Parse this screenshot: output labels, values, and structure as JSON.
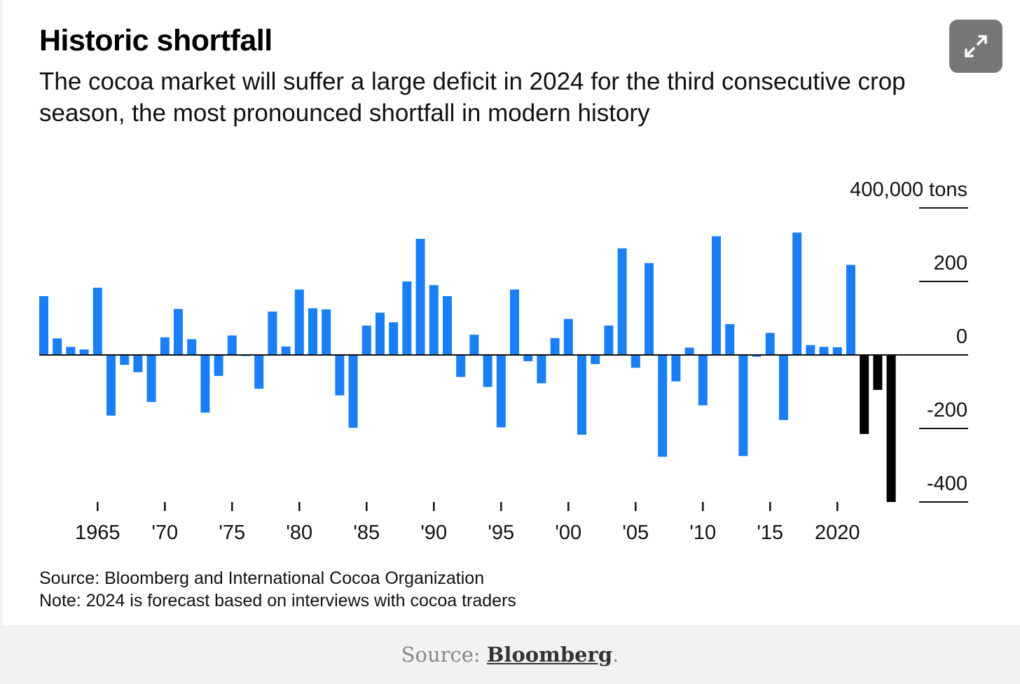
{
  "title": "Historic shortfall",
  "subtitle": "The cocoa market will suffer a large deficit in 2024 for the third consecutive crop season, the most pronounced shortfall in modern history",
  "expand_icon": "expand-icon",
  "notes": {
    "source": "Source: Bloomberg and International Cocoa Organization",
    "note": "Note: 2024 is forecast based on interviews with cocoa traders"
  },
  "caption": {
    "prefix": "Source: ",
    "link": "Bloomberg",
    "suffix": "."
  },
  "colors": {
    "actual": "#1a7ff5",
    "forecast": "#000000",
    "expand_bg": "#777777"
  },
  "chart_data": {
    "type": "bar",
    "title": "Historic shortfall",
    "unit_label": "400,000 tons",
    "ylim": [
      -400,
      400
    ],
    "yticks": [
      {
        "value": 400,
        "label": "400,000 tons"
      },
      {
        "value": 200,
        "label": "200"
      },
      {
        "value": 0,
        "label": "0"
      },
      {
        "value": -200,
        "label": "-200"
      },
      {
        "value": -400,
        "label": "-400"
      }
    ],
    "xticks": [
      {
        "year": 1965,
        "label": "1965"
      },
      {
        "year": 1970,
        "label": "'70"
      },
      {
        "year": 1975,
        "label": "'75"
      },
      {
        "year": 1980,
        "label": "'80"
      },
      {
        "year": 1985,
        "label": "'85"
      },
      {
        "year": 1990,
        "label": "'90"
      },
      {
        "year": 1995,
        "label": "'95"
      },
      {
        "year": 2000,
        "label": "'00"
      },
      {
        "year": 2005,
        "label": "'05"
      },
      {
        "year": 2010,
        "label": "'10"
      },
      {
        "year": 2015,
        "label": "'15"
      },
      {
        "year": 2020,
        "label": "2020"
      }
    ],
    "grid": false,
    "series": [
      {
        "x": [
          1961,
          1962,
          1963,
          1964,
          1965,
          1966,
          1967,
          1968,
          1969,
          1970,
          1971,
          1972,
          1973,
          1974,
          1975,
          1976,
          1977,
          1978,
          1979,
          1980,
          1981,
          1982,
          1983,
          1984,
          1985,
          1986,
          1987,
          1988,
          1989,
          1990,
          1991,
          1992,
          1993,
          1994,
          1995,
          1996,
          1997,
          1998,
          1999,
          2000,
          2001,
          2002,
          2003,
          2004,
          2005,
          2006,
          2007,
          2008,
          2009,
          2010,
          2011,
          2012,
          2013,
          2014,
          2015,
          2016,
          2017,
          2018,
          2019,
          2020,
          2021
        ],
        "values": [
          160,
          45,
          22,
          15,
          183,
          -165,
          -27,
          -47,
          -128,
          48,
          125,
          43,
          -157,
          -57,
          53,
          -3,
          -92,
          118,
          23,
          178,
          127,
          124,
          -110,
          -198,
          80,
          115,
          89,
          200,
          316,
          190,
          160,
          -60,
          55,
          -87,
          -197,
          178,
          -17,
          -77,
          46,
          98,
          -217,
          -25,
          80,
          290,
          -35,
          250,
          -277,
          -72,
          20,
          -137,
          323,
          84,
          -275,
          -5,
          60,
          -177,
          333,
          27,
          22,
          21,
          245
        ]
      },
      {
        "x": [
          2022,
          2023,
          2024
        ],
        "values": [
          -215,
          -95,
          -400
        ]
      }
    ]
  }
}
